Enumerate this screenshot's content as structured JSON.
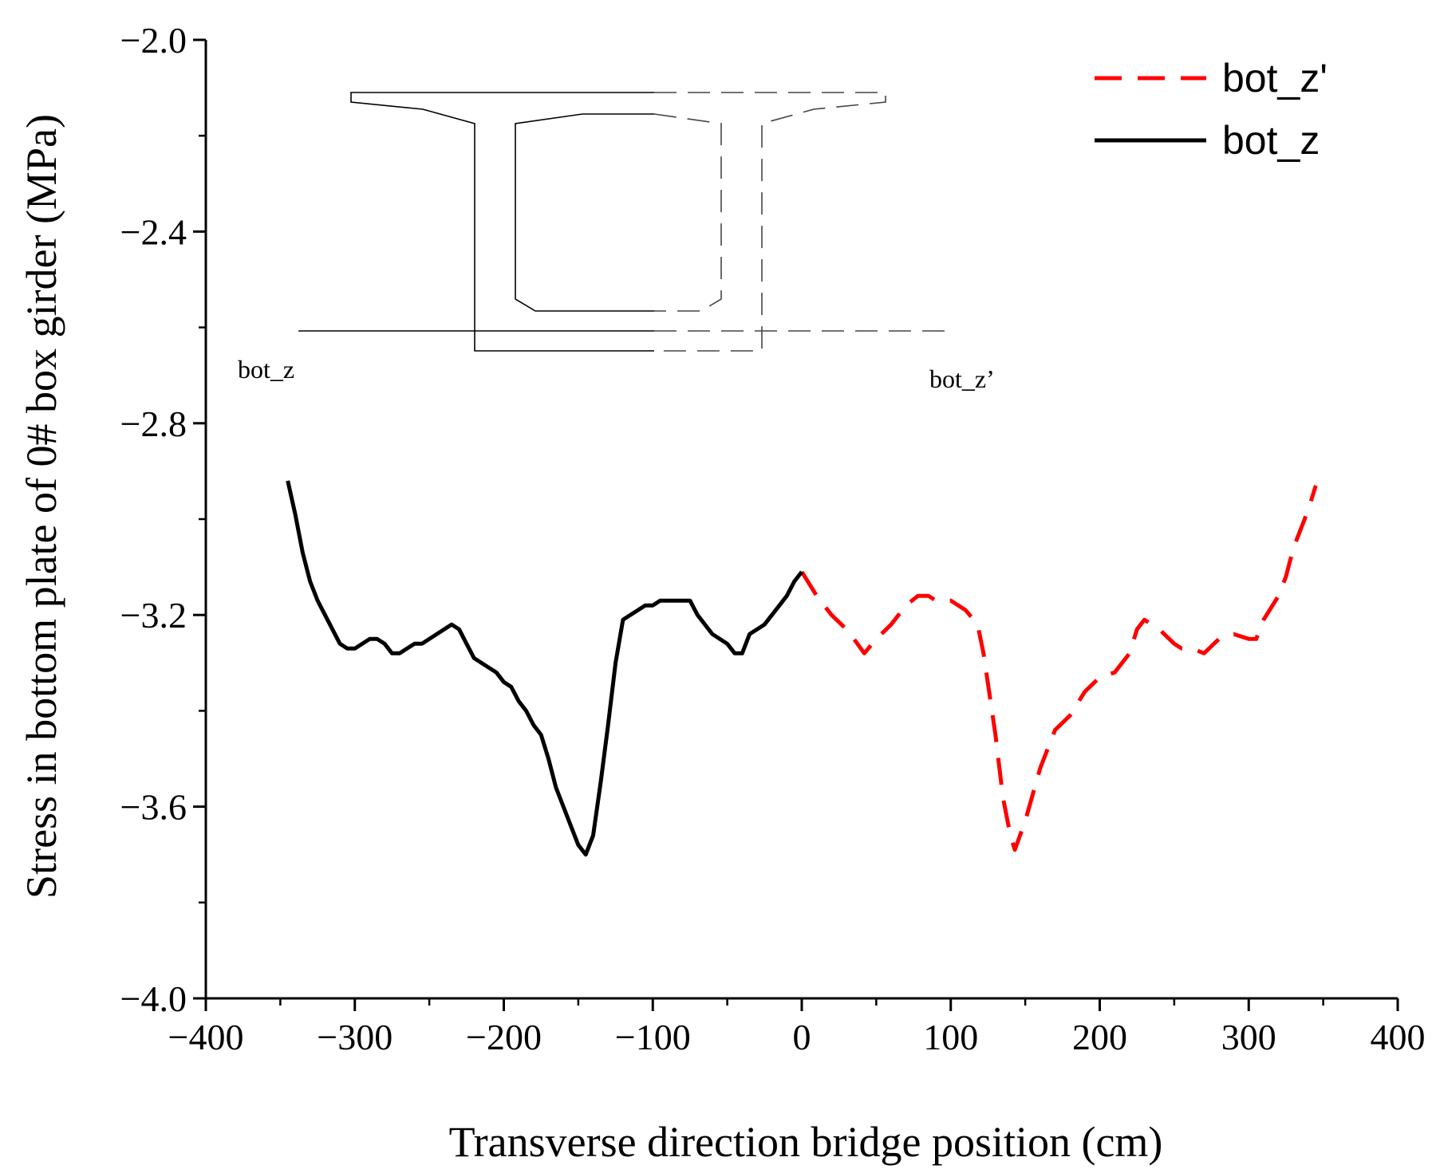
{
  "chart_data": {
    "type": "line",
    "title": "",
    "xlabel": "Transverse direction bridge position (cm)",
    "ylabel": "Stress in bottom plate of 0# box girder (MPa)",
    "xlim": [
      -400,
      400
    ],
    "ylim": [
      -4.0,
      -2.0
    ],
    "x_ticks": [
      -400,
      -300,
      -200,
      -100,
      0,
      100,
      200,
      300,
      400
    ],
    "x_tick_labels": [
      "−400",
      "−300",
      "−200",
      "−100",
      "0",
      "100",
      "200",
      "300",
      "400"
    ],
    "y_ticks": [
      -4.0,
      -3.6,
      -3.2,
      -2.8,
      -2.4,
      -2.0
    ],
    "y_tick_labels": [
      "−4.0",
      "−3.6",
      "−3.2",
      "−2.8",
      "−2.4",
      "−2.0"
    ],
    "grid": false,
    "legend_position": "top-right",
    "series": [
      {
        "name": "bot_z'",
        "color": "#ff0000",
        "dash": "dashed",
        "x": [
          0,
          10,
          20,
          30,
          35,
          42,
          50,
          60,
          70,
          78,
          85,
          90,
          100,
          110,
          118,
          122,
          130,
          135,
          140,
          143,
          150,
          160,
          170,
          180,
          190,
          200,
          210,
          220,
          225,
          230,
          240,
          250,
          255,
          262,
          270,
          280,
          290,
          300,
          305,
          310,
          320,
          325,
          330,
          340,
          345
        ],
        "y": [
          -3.11,
          -3.16,
          -3.2,
          -3.23,
          -3.25,
          -3.28,
          -3.25,
          -3.22,
          -3.18,
          -3.16,
          -3.16,
          -3.17,
          -3.17,
          -3.19,
          -3.22,
          -3.28,
          -3.45,
          -3.58,
          -3.66,
          -3.69,
          -3.63,
          -3.52,
          -3.44,
          -3.41,
          -3.36,
          -3.33,
          -3.32,
          -3.28,
          -3.23,
          -3.21,
          -3.23,
          -3.26,
          -3.27,
          -3.27,
          -3.28,
          -3.25,
          -3.24,
          -3.25,
          -3.25,
          -3.21,
          -3.16,
          -3.12,
          -3.06,
          -2.98,
          -2.93
        ]
      },
      {
        "name": "bot_z",
        "color": "#000000",
        "dash": "solid",
        "x": [
          -345,
          -340,
          -335,
          -330,
          -325,
          -320,
          -315,
          -310,
          -305,
          -300,
          -295,
          -290,
          -285,
          -280,
          -275,
          -270,
          -265,
          -260,
          -255,
          -250,
          -245,
          -240,
          -235,
          -230,
          -225,
          -220,
          -215,
          -210,
          -205,
          -200,
          -195,
          -190,
          -185,
          -180,
          -175,
          -170,
          -165,
          -160,
          -155,
          -150,
          -145,
          -140,
          -135,
          -130,
          -125,
          -120,
          -115,
          -110,
          -105,
          -100,
          -95,
          -90,
          -85,
          -80,
          -75,
          -70,
          -65,
          -60,
          -55,
          -50,
          -45,
          -40,
          -35,
          -30,
          -25,
          -20,
          -15,
          -10,
          -5,
          0
        ],
        "y": [
          -2.92,
          -2.99,
          -3.07,
          -3.13,
          -3.17,
          -3.2,
          -3.23,
          -3.26,
          -3.27,
          -3.27,
          -3.26,
          -3.25,
          -3.25,
          -3.26,
          -3.28,
          -3.28,
          -3.27,
          -3.26,
          -3.26,
          -3.25,
          -3.24,
          -3.23,
          -3.22,
          -3.23,
          -3.26,
          -3.29,
          -3.3,
          -3.31,
          -3.32,
          -3.34,
          -3.35,
          -3.38,
          -3.4,
          -3.43,
          -3.45,
          -3.5,
          -3.56,
          -3.6,
          -3.64,
          -3.68,
          -3.7,
          -3.66,
          -3.55,
          -3.43,
          -3.3,
          -3.21,
          -3.2,
          -3.19,
          -3.18,
          -3.18,
          -3.17,
          -3.17,
          -3.17,
          -3.17,
          -3.17,
          -3.2,
          -3.22,
          -3.24,
          -3.25,
          -3.26,
          -3.28,
          -3.28,
          -3.24,
          -3.23,
          -3.22,
          -3.2,
          -3.18,
          -3.16,
          -3.13,
          -3.11
        ]
      }
    ],
    "inset": {
      "left_label": "bot_z",
      "right_label": "bot_z’"
    }
  }
}
